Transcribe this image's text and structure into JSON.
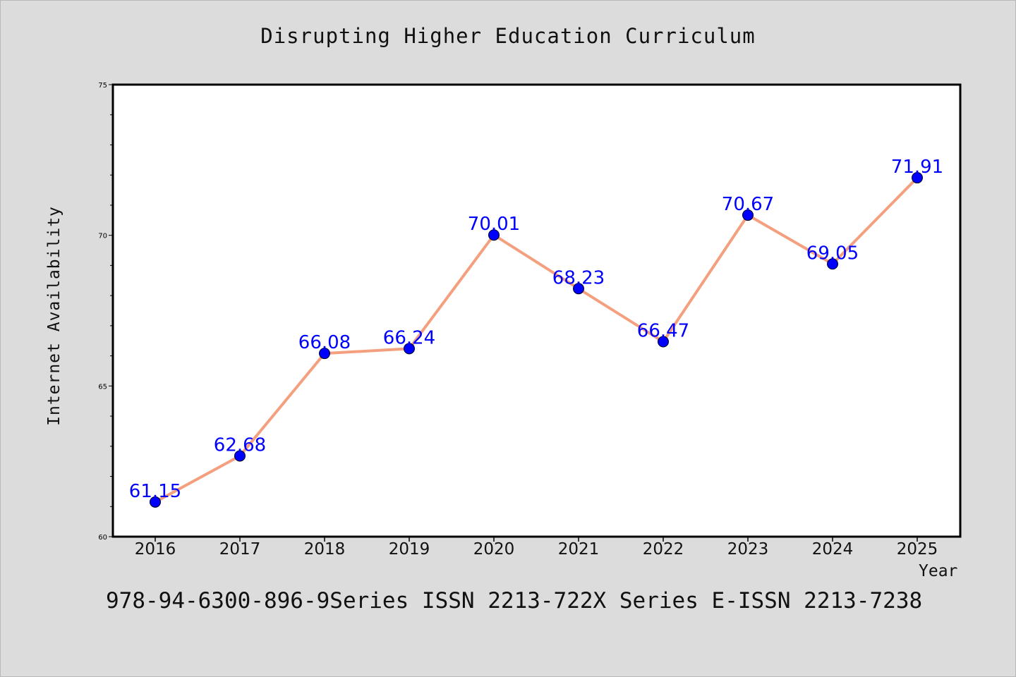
{
  "chart_data": {
    "type": "line",
    "title": "Disrupting Higher Education Curriculum",
    "xlabel": "Year",
    "ylabel": "Internet Availability",
    "x": [
      "2016",
      "2017",
      "2018",
      "2019",
      "2020",
      "2021",
      "2022",
      "2023",
      "2024",
      "2025"
    ],
    "series": [
      {
        "values": [
          61.15,
          62.68,
          66.08,
          66.24,
          70.01,
          68.23,
          66.47,
          70.67,
          69.05,
          71.91
        ],
        "labels": [
          "61.15",
          "62.68",
          "66.08",
          "66.24",
          "70.01",
          "68.23",
          "66.47",
          "70.67",
          "69.05",
          "71.91"
        ],
        "line_color": "#f4a07f",
        "marker_color": "#0000ff"
      }
    ],
    "ylim": [
      60,
      75
    ],
    "yticks": [
      "60",
      "65",
      "70",
      "75"
    ],
    "grid": false,
    "legend": "none"
  },
  "footer": "978-94-6300-896-9Series ISSN 2213-722X Series E-ISSN 2213-7238",
  "colors": {
    "background": "#dcdcdc",
    "plot_background": "#ffffff",
    "data_label": "#0000ff"
  }
}
